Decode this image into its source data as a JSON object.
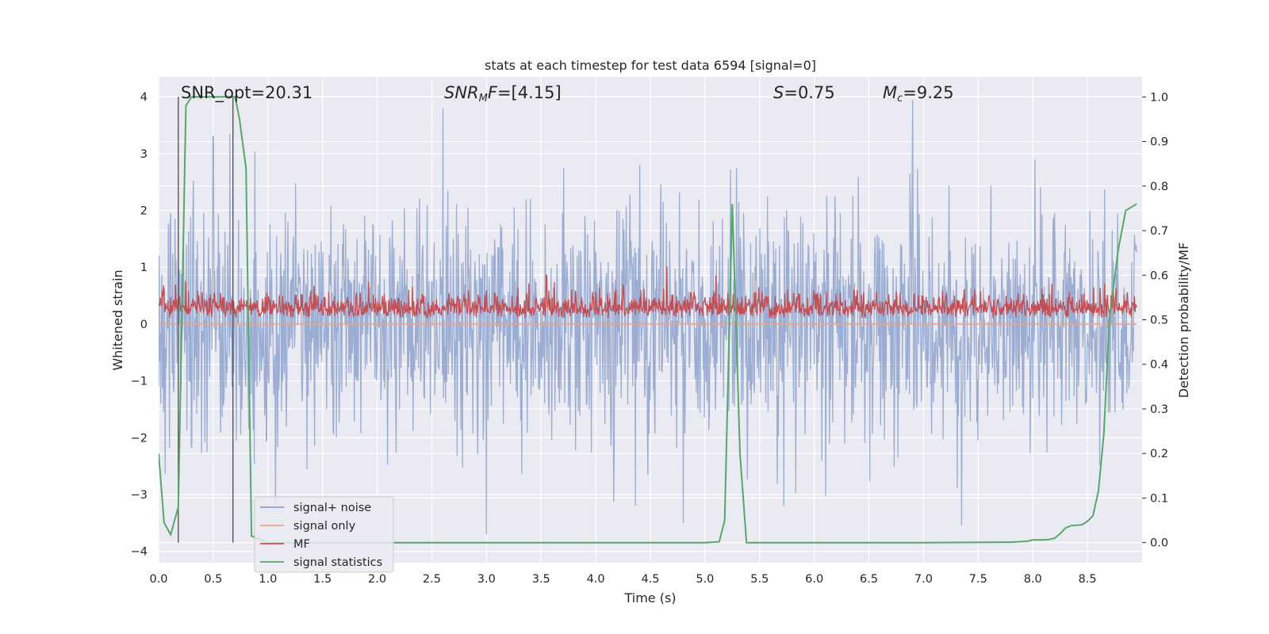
{
  "chart_data": {
    "type": "line",
    "title": "stats at each timestep for test data 6594 [signal=0]",
    "xlabel": "Time (s)",
    "ylabel": "Whitened strain",
    "ylabel_right": "Detection probability/MF",
    "xlim": [
      0.0,
      9.0
    ],
    "ylim": [
      -4.2,
      4.35
    ],
    "ylim_right": [
      -0.045,
      1.045
    ],
    "x_ticks": [
      "0.0",
      "0.5",
      "1.0",
      "1.5",
      "2.0",
      "2.5",
      "3.0",
      "3.5",
      "4.0",
      "4.5",
      "5.0",
      "5.5",
      "6.0",
      "6.5",
      "7.0",
      "7.5",
      "8.0",
      "8.5"
    ],
    "y_ticks": [
      "−4",
      "−3",
      "−2",
      "−1",
      "0",
      "1",
      "2",
      "3",
      "4"
    ],
    "y_right_ticks": [
      "0.0",
      "0.1",
      "0.2",
      "0.3",
      "0.4",
      "0.5",
      "0.6",
      "0.7",
      "0.8",
      "0.9",
      "1.0"
    ],
    "grid": true,
    "legend_position": "lower-left",
    "annotations": {
      "snr_opt": "SNR_opt=20.31",
      "snr_mf_sym": "SNR",
      "snr_mf_sub": "M",
      "snr_mf_sym2": "F",
      "snr_mf_val": "=[4.15]",
      "s_sym": "S",
      "s_val": "=0.75",
      "mc_sym": "M",
      "mc_sub": "c",
      "mc_val": "=9.25"
    },
    "vertical_lines_x": [
      0.18,
      0.68
    ],
    "series": [
      {
        "name": "signal+ noise",
        "color": "#8da2cc",
        "axis": "left",
        "description": "whitened noise, roughly Gaussian with sigma about 1, peaks up to about +/-3.9",
        "peaks": [
          [
            2.6,
            3.8
          ],
          [
            3.0,
            -3.7
          ],
          [
            6.9,
            3.95
          ],
          [
            4.8,
            -3.5
          ],
          [
            7.35,
            -3.55
          ],
          [
            0.5,
            3.3
          ],
          [
            0.65,
            3.35
          ]
        ]
      },
      {
        "name": "signal only",
        "color": "#e8a58c",
        "axis": "left",
        "x": [
          0.0,
          8.95
        ],
        "y": [
          0.0,
          0.0
        ]
      },
      {
        "name": "MF",
        "color": "#c44e52",
        "axis": "right",
        "description": "matched filter output fluctuating about 0.52 to 0.55 between about 0.495 and 0.64",
        "peaks": [
          [
            3.55,
            0.6
          ],
          [
            4.65,
            0.62
          ],
          [
            5.1,
            0.6
          ]
        ]
      },
      {
        "name": "signal statistics",
        "color": "#55a868",
        "axis": "right",
        "x": [
          0.0,
          0.05,
          0.11,
          0.18,
          0.25,
          0.3,
          0.4,
          0.5,
          0.6,
          0.7,
          0.74,
          0.8,
          0.85,
          1.0,
          2.0,
          3.0,
          4.0,
          5.0,
          5.13,
          5.18,
          5.25,
          5.32,
          5.38,
          5.5,
          6.0,
          7.0,
          7.8,
          7.95,
          8.0,
          8.1,
          8.15,
          8.2,
          8.25,
          8.3,
          8.35,
          8.45,
          8.5,
          8.55,
          8.6,
          8.65,
          8.7,
          8.78,
          8.85,
          8.95
        ],
        "y": [
          0.2,
          0.045,
          0.018,
          0.08,
          0.98,
          1.0,
          1.0,
          1.0,
          1.0,
          1.0,
          0.95,
          0.84,
          0.015,
          0.0,
          0.0,
          0.0,
          0.0,
          0.0,
          0.002,
          0.05,
          0.76,
          0.2,
          0.0,
          0.0,
          0.0,
          0.0,
          0.001,
          0.003,
          0.006,
          0.006,
          0.007,
          0.01,
          0.02,
          0.033,
          0.038,
          0.04,
          0.048,
          0.06,
          0.115,
          0.245,
          0.5,
          0.655,
          0.745,
          0.76
        ]
      }
    ]
  }
}
